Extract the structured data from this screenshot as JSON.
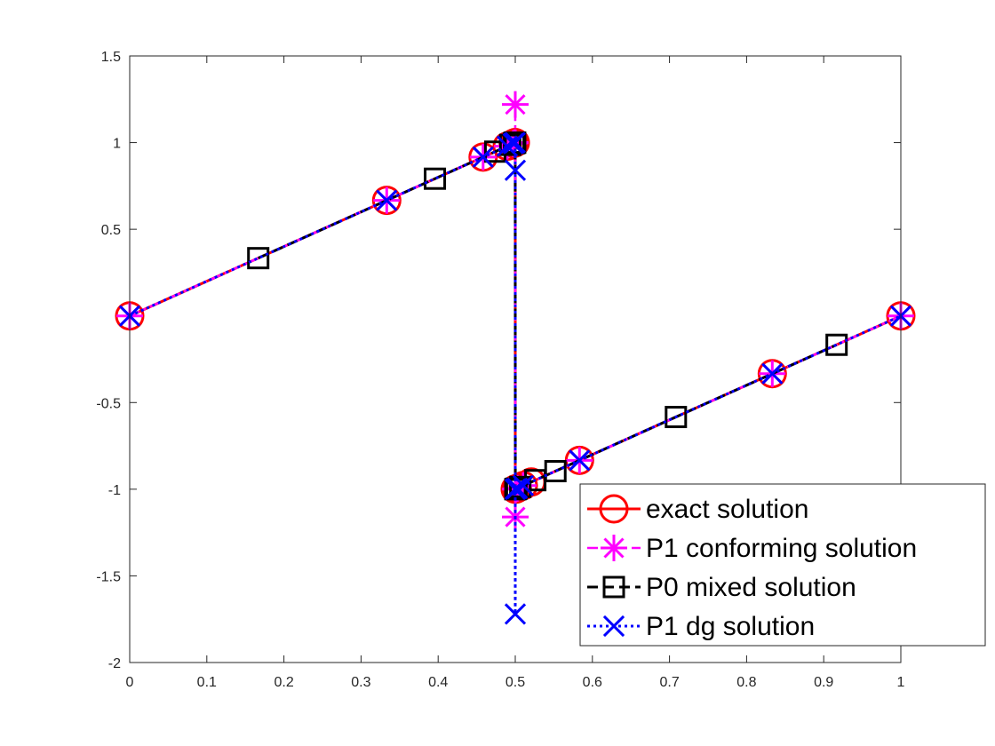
{
  "chart_data": {
    "type": "line",
    "title": "",
    "xlabel": "",
    "ylabel": "",
    "xlim": [
      0,
      1
    ],
    "ylim": [
      -2,
      1.5
    ],
    "x_ticks": [
      0,
      0.1,
      0.2,
      0.3,
      0.4,
      0.5,
      0.6,
      0.7,
      0.8,
      0.9,
      1
    ],
    "x_tick_labels": [
      "0",
      "0.1",
      "0.2",
      "0.3",
      "0.4",
      "0.5",
      "0.6",
      "0.7",
      "0.8",
      "0.9",
      "1"
    ],
    "y_ticks": [
      -2,
      -1.5,
      -1,
      -0.5,
      0.5,
      1,
      1.5
    ],
    "y_tick_labels": [
      "-2",
      "-1.5",
      "-1",
      "-0.5",
      "0.5",
      "1",
      "1.5"
    ],
    "grid": false,
    "legend_position": "bottom-right",
    "series": [
      {
        "name": "exact solution",
        "color": "#ff0000",
        "line_style": "solid",
        "marker": "circle",
        "x": [
          0,
          0.3333,
          0.4583,
          0.4896,
          0.4974,
          0.4993,
          0.4998,
          0.5,
          0.5,
          0.5002,
          0.5007,
          0.5026,
          0.5104,
          0.5208,
          0.5833,
          0.8333,
          1
        ],
        "y": [
          0,
          0.6667,
          0.9167,
          0.9792,
          0.9948,
          0.9987,
          0.9997,
          1.0,
          -1.0,
          -0.9997,
          -0.9987,
          -0.9948,
          -0.9792,
          -0.9583,
          -0.8333,
          -0.3333,
          0
        ]
      },
      {
        "name": "P1 conforming solution",
        "color": "#ff00ff",
        "line_style": "dashdot",
        "marker": "asterisk",
        "x": [
          0,
          0.3333,
          0.4583,
          0.4896,
          0.4974,
          0.4993,
          0.4998,
          0.5,
          0.5,
          0.5,
          0.5002,
          0.5007,
          0.5026,
          0.5104,
          0.5833,
          0.8333,
          1
        ],
        "y": [
          0,
          0.6667,
          0.9167,
          0.9792,
          0.9948,
          0.9987,
          0.9997,
          1.22,
          1.0,
          -1.16,
          -0.9997,
          -0.9987,
          -0.9948,
          -0.9792,
          -0.8333,
          -0.3333,
          0
        ]
      },
      {
        "name": "P0 mixed solution",
        "color": "#000000",
        "line_style": "dashed",
        "marker": "square",
        "x": [
          0.1667,
          0.3958,
          0.474,
          0.4935,
          0.4984,
          0.4996,
          0.4999,
          0.5001,
          0.5004,
          0.5016,
          0.5065,
          0.526,
          0.5521,
          0.7083,
          0.9167
        ],
        "y": [
          0.3333,
          0.7917,
          0.9479,
          0.987,
          0.9967,
          0.9992,
          0.9998,
          -0.9998,
          -0.9992,
          -0.9967,
          -0.987,
          -0.9479,
          -0.8958,
          -0.5833,
          -0.1667
        ]
      },
      {
        "name": "P1 dg solution",
        "color": "#0000ff",
        "line_style": "dotted",
        "marker": "x",
        "x": [
          0,
          0.3333,
          0.4583,
          0.4896,
          0.4974,
          0.4993,
          0.4998,
          0.5,
          0.5,
          0.5,
          0.5002,
          0.5007,
          0.5026,
          0.5104,
          0.5833,
          0.8333,
          1
        ],
        "y": [
          0,
          0.6667,
          0.9167,
          0.9792,
          0.9948,
          0.9987,
          0.9997,
          0.84,
          -1.72,
          -1.0,
          -0.9997,
          -0.9987,
          -0.9948,
          -0.9792,
          -0.8333,
          -0.3333,
          0
        ]
      }
    ]
  }
}
